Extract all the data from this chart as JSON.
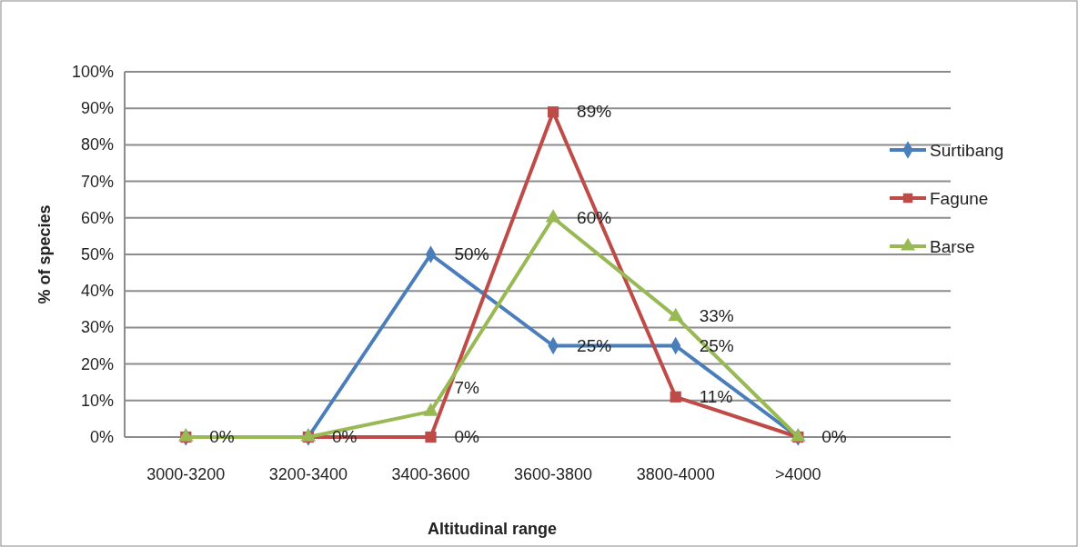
{
  "chart_data": {
    "type": "line",
    "xlabel": "Altitudinal range",
    "ylabel": "% of species",
    "categories": [
      "3000-3200",
      "3200-3400",
      "3400-3600",
      "3600-3800",
      "3800-4000",
      ">4000"
    ],
    "series": [
      {
        "name": "Surtibang",
        "color": "#4a7ebb",
        "marker": "diamond",
        "values": [
          0,
          0,
          50,
          25,
          25,
          0
        ],
        "value_labels": [
          null,
          null,
          "50%",
          "25%",
          "25%",
          null
        ]
      },
      {
        "name": "Fagune",
        "color": "#be4b48",
        "marker": "square",
        "values": [
          0,
          0,
          0,
          89,
          11,
          0
        ],
        "value_labels": [
          "0%",
          "0%",
          "0%",
          "89%",
          "11%",
          "0%"
        ]
      },
      {
        "name": "Barse",
        "color": "#98b954",
        "marker": "triangle",
        "values": [
          0,
          0,
          7,
          60,
          33,
          0
        ],
        "value_labels": [
          null,
          null,
          "7%",
          "60%",
          "33%",
          null
        ]
      }
    ],
    "ylim": [
      0,
      100
    ],
    "yticks": [
      {
        "value": 0,
        "label": "0%"
      },
      {
        "value": 10,
        "label": "10%"
      },
      {
        "value": 20,
        "label": "20%"
      },
      {
        "value": 30,
        "label": "30%"
      },
      {
        "value": 40,
        "label": "40%"
      },
      {
        "value": 50,
        "label": "50%"
      },
      {
        "value": 60,
        "label": "60%"
      },
      {
        "value": 70,
        "label": "70%"
      },
      {
        "value": 80,
        "label": "80%"
      },
      {
        "value": 90,
        "label": "90%"
      },
      {
        "value": 100,
        "label": "100%"
      }
    ],
    "grid": "y",
    "legend": "right",
    "line_style": "solid"
  }
}
